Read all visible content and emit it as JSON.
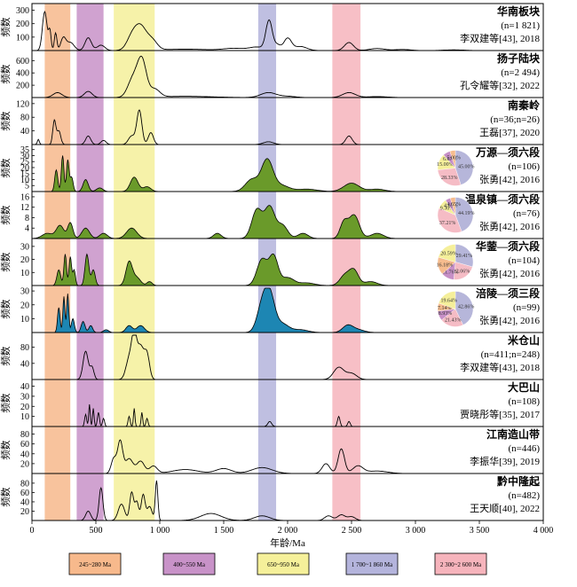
{
  "chart_data": {
    "type": "area",
    "xlabel": "年龄/Ma",
    "ylabel": "频数",
    "xlim": [
      0,
      4000
    ],
    "x_ticks": [
      0,
      500,
      1000,
      1500,
      2000,
      2500,
      3000,
      3500,
      4000
    ],
    "x_tick_labels": [
      "0",
      "500",
      "1 000",
      "1 500",
      "2 000",
      "2 500",
      "3 000",
      "3 500",
      "4 000"
    ],
    "bands": [
      {
        "range": [
          100,
          300
        ],
        "color": "#f7b98c",
        "legend": "245~280 Ma"
      },
      {
        "range": [
          350,
          560
        ],
        "color": "#c892c8",
        "legend": "400~550 Ma"
      },
      {
        "range": [
          640,
          960
        ],
        "color": "#f5f09a",
        "legend": "650~950 Ma"
      },
      {
        "range": [
          1770,
          1910
        ],
        "color": "#b4b4dc",
        "legend": "1 700~1 860 Ma"
      },
      {
        "range": [
          2350,
          2570
        ],
        "color": "#f6b4bc",
        "legend": "2 300~2 600 Ma"
      }
    ],
    "panels": [
      {
        "title": "华南板块",
        "n": "(n=1 821)",
        "source": "李双建等[43], 2018",
        "yticks": [
          100,
          200,
          300
        ],
        "ymax": 330,
        "fill": null,
        "peaks": [
          [
            100,
            290,
            18
          ],
          [
            140,
            140,
            10
          ],
          [
            185,
            130,
            10
          ],
          [
            245,
            90,
            20
          ],
          [
            300,
            60,
            30
          ],
          [
            440,
            95,
            25
          ],
          [
            540,
            40,
            30
          ],
          [
            780,
            90,
            40
          ],
          [
            850,
            170,
            45
          ],
          [
            940,
            70,
            40
          ],
          [
            1200,
            10,
            200
          ],
          [
            1580,
            15,
            80
          ],
          [
            1760,
            25,
            60
          ],
          [
            1855,
            220,
            25
          ],
          [
            1920,
            40,
            25
          ],
          [
            2000,
            90,
            30
          ],
          [
            2100,
            30,
            50
          ],
          [
            2480,
            60,
            35
          ],
          [
            2700,
            15,
            60
          ],
          [
            2900,
            8,
            60
          ],
          [
            3300,
            5,
            80
          ]
        ]
      },
      {
        "title": "扬子陆块",
        "n": "(n=2 494)",
        "source": "孔令耀等[32], 2022",
        "yticks": [
          200,
          400,
          600
        ],
        "ymax": 720,
        "fill": null,
        "peaks": [
          [
            200,
            80,
            35
          ],
          [
            440,
            100,
            30
          ],
          [
            790,
            300,
            40
          ],
          [
            860,
            590,
            35
          ],
          [
            960,
            130,
            40
          ],
          [
            1200,
            20,
            200
          ],
          [
            1850,
            80,
            60
          ],
          [
            2000,
            20,
            60
          ],
          [
            2480,
            80,
            50
          ],
          [
            2700,
            15,
            80
          ]
        ]
      },
      {
        "title": "南秦岭",
        "n": "(n=36;n=26)",
        "source": "王磊[37], 2020",
        "yticks": [
          40,
          80,
          120
        ],
        "ymax": 130,
        "fill": null,
        "peaks": [
          [
            50,
            15,
            8
          ],
          [
            175,
            70,
            12
          ],
          [
            210,
            40,
            15
          ],
          [
            440,
            25,
            20
          ],
          [
            560,
            12,
            20
          ],
          [
            780,
            25,
            25
          ],
          [
            840,
            100,
            20
          ],
          [
            930,
            35,
            20
          ],
          [
            1850,
            8,
            40
          ],
          [
            2480,
            25,
            25
          ]
        ]
      },
      {
        "title": "万源—须六段",
        "n": "(n=106)",
        "source": "张勇[42], 2016",
        "yticks": [
          5,
          10,
          15,
          20,
          25,
          30,
          35
        ],
        "ymax": 37,
        "fill": "#6a9a2a",
        "peaks": [
          [
            190,
            18,
            12
          ],
          [
            240,
            30,
            10
          ],
          [
            280,
            26,
            10
          ],
          [
            310,
            12,
            12
          ],
          [
            420,
            10,
            20
          ],
          [
            530,
            3,
            25
          ],
          [
            800,
            12,
            30
          ],
          [
            900,
            4,
            30
          ],
          [
            1720,
            10,
            50
          ],
          [
            1840,
            26,
            45
          ],
          [
            1950,
            5,
            60
          ],
          [
            2150,
            2,
            80
          ],
          [
            2500,
            7,
            60
          ],
          [
            2700,
            2,
            60
          ]
        ],
        "pie": [
          {
            "label": "45.00%",
            "v": 45.0,
            "color": "#b6b6da"
          },
          {
            "label": "28.33%",
            "v": 28.33,
            "color": "#f5bcc5"
          },
          {
            "label": "15.00%",
            "v": 15.0,
            "color": "#f5ef9a"
          },
          {
            "label": "6.67%",
            "v": 6.67,
            "color": "#c68fc6"
          },
          {
            "label": "5.00%",
            "v": 5.0,
            "color": "#f6bc8e"
          }
        ]
      },
      {
        "title": "温泉镇—须六段",
        "n": "(n=76)",
        "source": "张勇[42], 2016",
        "yticks": [
          4,
          8,
          12,
          16
        ],
        "ymax": 17,
        "fill": "#6a9a2a",
        "peaks": [
          [
            120,
            2,
            40
          ],
          [
            220,
            5,
            30
          ],
          [
            300,
            6,
            20
          ],
          [
            420,
            4,
            30
          ],
          [
            560,
            2,
            30
          ],
          [
            780,
            4,
            40
          ],
          [
            1450,
            2,
            30
          ],
          [
            1760,
            11,
            40
          ],
          [
            1860,
            12,
            40
          ],
          [
            1960,
            5,
            40
          ],
          [
            2120,
            2,
            40
          ],
          [
            2440,
            6,
            30
          ],
          [
            2520,
            9,
            40
          ],
          [
            2700,
            2,
            50
          ]
        ],
        "pie": [
          {
            "label": "44.19%",
            "v": 44.19,
            "color": "#b6b6da"
          },
          {
            "label": "37.21%",
            "v": 37.21,
            "color": "#f5bcc5"
          },
          {
            "label": "9.30%",
            "v": 9.3,
            "color": "#f5ef9a"
          },
          {
            "label": "4.65%",
            "v": 4.65,
            "color": "#c68fc6"
          },
          {
            "label": "4.65%",
            "v": 4.65,
            "color": "#f6bc8e"
          }
        ]
      },
      {
        "title": "华蓥—须六段",
        "n": "(n=104)",
        "source": "张勇[42], 2016",
        "yticks": [
          10,
          20,
          30
        ],
        "ymax": 34,
        "fill": "#6a9a2a",
        "peaks": [
          [
            210,
            12,
            15
          ],
          [
            260,
            24,
            10
          ],
          [
            300,
            22,
            10
          ],
          [
            330,
            12,
            10
          ],
          [
            430,
            24,
            15
          ],
          [
            480,
            12,
            15
          ],
          [
            760,
            18,
            25
          ],
          [
            820,
            6,
            30
          ],
          [
            920,
            3,
            20
          ],
          [
            1800,
            20,
            40
          ],
          [
            1890,
            22,
            35
          ],
          [
            2000,
            6,
            50
          ],
          [
            2150,
            2,
            60
          ],
          [
            2450,
            8,
            40
          ],
          [
            2520,
            11,
            35
          ],
          [
            2650,
            3,
            50
          ]
        ],
        "pie": [
          {
            "label": "29.41%",
            "v": 29.41,
            "color": "#b6b6da"
          },
          {
            "label": "22.06%",
            "v": 22.06,
            "color": "#f5bcc5"
          },
          {
            "label": "11.76%",
            "v": 11.76,
            "color": "#c68fc6"
          },
          {
            "label": "16.18%",
            "v": 16.18,
            "color": "#f6bc8e"
          },
          {
            "label": "20.59%",
            "v": 20.59,
            "color": "#f5ef9a"
          }
        ]
      },
      {
        "title": "涪陵—须三段",
        "n": "(n=99)",
        "source": "张勇[42], 2016",
        "yticks": [
          10,
          20,
          30
        ],
        "ymax": 32,
        "fill": "#1d86b3",
        "peaks": [
          [
            210,
            18,
            10
          ],
          [
            250,
            26,
            8
          ],
          [
            280,
            28,
            8
          ],
          [
            320,
            10,
            12
          ],
          [
            400,
            8,
            15
          ],
          [
            460,
            5,
            15
          ],
          [
            580,
            2,
            20
          ],
          [
            760,
            5,
            25
          ],
          [
            850,
            5,
            30
          ],
          [
            1800,
            18,
            40
          ],
          [
            1860,
            26,
            40
          ],
          [
            1960,
            6,
            50
          ],
          [
            2100,
            2,
            60
          ],
          [
            2470,
            5,
            40
          ],
          [
            2550,
            2,
            50
          ]
        ],
        "pie": [
          {
            "label": "42.86%",
            "v": 42.86,
            "color": "#b6b6da"
          },
          {
            "label": "21.43%",
            "v": 21.43,
            "color": "#f5bcc5"
          },
          {
            "label": "8.93%",
            "v": 8.93,
            "color": "#c68fc6"
          },
          {
            "label": "7.14%",
            "v": 7.14,
            "color": "#f6bc8e"
          },
          {
            "label": "19.64%",
            "v": 19.64,
            "color": "#f5ef9a"
          }
        ]
      },
      {
        "title": "米仓山",
        "n": "(n=411;n=248)",
        "source": "李双建等[43], 2018",
        "yticks": [
          40,
          80
        ],
        "ymax": 110,
        "fill": null,
        "peaks": [
          [
            420,
            70,
            20
          ],
          [
            470,
            30,
            15
          ],
          [
            760,
            50,
            25
          ],
          [
            800,
            100,
            20
          ],
          [
            850,
            80,
            25
          ],
          [
            900,
            60,
            20
          ],
          [
            2400,
            30,
            40
          ],
          [
            2500,
            15,
            40
          ]
        ]
      },
      {
        "title": "大巴山",
        "n": "(n=108)",
        "source": "贾晓彤等[35], 2017",
        "yticks": [
          10,
          20,
          30,
          40
        ],
        "ymax": 44,
        "fill": null,
        "peaks": [
          [
            420,
            12,
            8
          ],
          [
            450,
            22,
            6
          ],
          [
            480,
            18,
            6
          ],
          [
            520,
            14,
            8
          ],
          [
            560,
            8,
            8
          ],
          [
            760,
            10,
            8
          ],
          [
            800,
            18,
            6
          ],
          [
            860,
            14,
            6
          ],
          [
            900,
            8,
            8
          ],
          [
            1860,
            5,
            15
          ],
          [
            2400,
            10,
            10
          ],
          [
            2480,
            5,
            10
          ]
        ]
      },
      {
        "title": "江南造山带",
        "n": "(n=446)",
        "source": "李振华[39], 2019",
        "yticks": [
          20,
          40,
          60,
          80
        ],
        "ymax": 90,
        "fill": null,
        "peaks": [
          [
            640,
            30,
            20
          ],
          [
            690,
            65,
            20
          ],
          [
            760,
            30,
            30
          ],
          [
            850,
            25,
            30
          ],
          [
            950,
            15,
            30
          ],
          [
            1200,
            8,
            100
          ],
          [
            1500,
            10,
            60
          ],
          [
            1800,
            12,
            80
          ],
          [
            2300,
            20,
            30
          ],
          [
            2420,
            50,
            25
          ],
          [
            2550,
            15,
            40
          ],
          [
            2700,
            5,
            80
          ]
        ]
      },
      {
        "title": "黔中隆起",
        "n": "(n=482)",
        "source": "王天顺[40], 2022",
        "yticks": [
          20,
          40,
          60,
          80
        ],
        "ymax": 95,
        "fill": null,
        "peaks": [
          [
            440,
            20,
            20
          ],
          [
            540,
            70,
            15
          ],
          [
            700,
            35,
            25
          ],
          [
            780,
            60,
            15
          ],
          [
            820,
            40,
            15
          ],
          [
            870,
            55,
            15
          ],
          [
            920,
            30,
            20
          ],
          [
            975,
            85,
            10
          ],
          [
            1400,
            15,
            80
          ],
          [
            1800,
            10,
            60
          ],
          [
            2320,
            10,
            30
          ],
          [
            2420,
            12,
            30
          ],
          [
            2500,
            8,
            30
          ]
        ]
      }
    ]
  }
}
